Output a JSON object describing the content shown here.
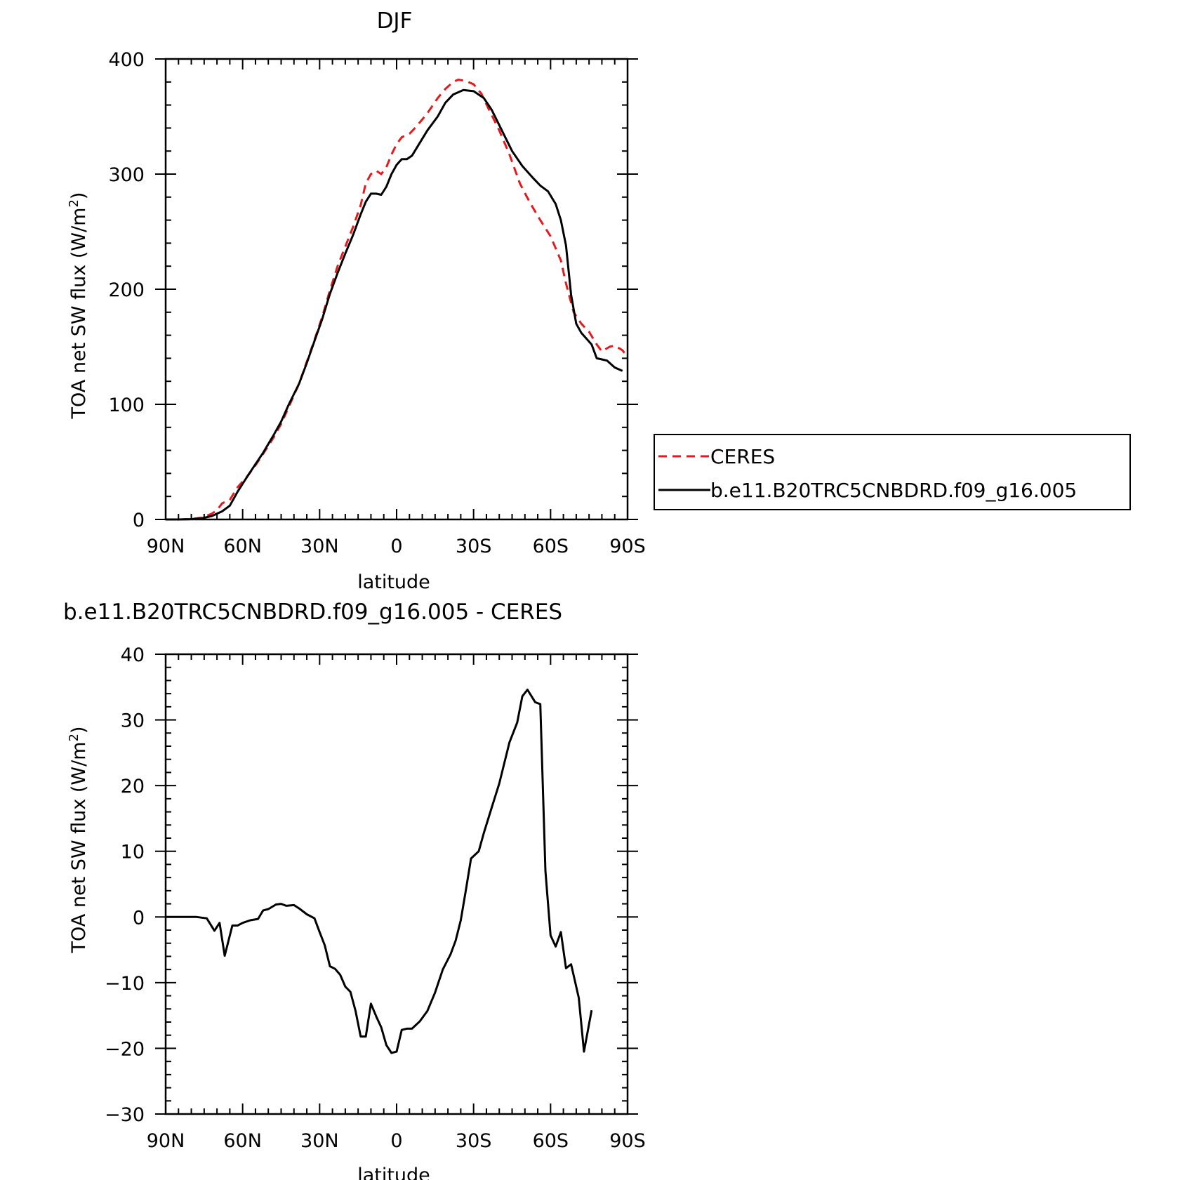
{
  "chart_data": [
    {
      "type": "line",
      "title": "DJF",
      "xlabel": "latitude",
      "ylabel": "TOA net SW flux (W/m",
      "ylabel_sup": "2",
      "ylabel_close": ")",
      "xlim": [
        -90,
        90
      ],
      "ylim": [
        0,
        400
      ],
      "x_ticks": [
        -90,
        -60,
        -30,
        0,
        30,
        60,
        90
      ],
      "x_tick_labels": [
        "90N",
        "60N",
        "30N",
        "0",
        "30S",
        "60S",
        "90S"
      ],
      "y_ticks": [
        0,
        100,
        200,
        300,
        400
      ],
      "y_tick_labels": [
        "0",
        "100",
        "200",
        "300",
        "400"
      ],
      "legend_position": "right",
      "series": [
        {
          "name": "CERES",
          "color": "#e41a1c",
          "style": "dashed",
          "points": [
            [
              -90,
              0
            ],
            [
              -85,
              0
            ],
            [
              -80,
              0.3
            ],
            [
              -76,
              1.5
            ],
            [
              -72,
              5
            ],
            [
              -70,
              8
            ],
            [
              -68,
              14
            ],
            [
              -65,
              17
            ],
            [
              -62,
              28
            ],
            [
              -58,
              38
            ],
            [
              -55,
              47
            ],
            [
              -52,
              57
            ],
            [
              -48,
              71
            ],
            [
              -45,
              83
            ],
            [
              -42,
              98
            ],
            [
              -38,
              118
            ],
            [
              -35,
              137
            ],
            [
              -32,
              156
            ],
            [
              -29,
              176
            ],
            [
              -26,
              199
            ],
            [
              -23,
              220
            ],
            [
              -20,
              237
            ],
            [
              -17,
              254
            ],
            [
              -14,
              273
            ],
            [
              -12,
              292
            ],
            [
              -10,
              300
            ],
            [
              -8,
              303
            ],
            [
              -6,
              300
            ],
            [
              -4,
              306
            ],
            [
              -2,
              317
            ],
            [
              0,
              326
            ],
            [
              2,
              332
            ],
            [
              5,
              335
            ],
            [
              8,
              342
            ],
            [
              12,
              353
            ],
            [
              16,
              366
            ],
            [
              19,
              374
            ],
            [
              22,
              380
            ],
            [
              24,
              382
            ],
            [
              27,
              381
            ],
            [
              30,
              378
            ],
            [
              33,
              370
            ],
            [
              36,
              356
            ],
            [
              40,
              338
            ],
            [
              44,
              317
            ],
            [
              48,
              292
            ],
            [
              52,
              275
            ],
            [
              56,
              260
            ],
            [
              60,
              246
            ],
            [
              64,
              225
            ],
            [
              66,
              205
            ],
            [
              69,
              180
            ],
            [
              72,
              170
            ],
            [
              75,
              163
            ],
            [
              78,
              152
            ],
            [
              80,
              146
            ],
            [
              83,
              150
            ],
            [
              85,
              151
            ],
            [
              88,
              147
            ],
            [
              90,
              141
            ]
          ]
        },
        {
          "name": "b.e11.B20TRC5CNBDRD.f09_g16.005",
          "color": "#000000",
          "style": "solid",
          "points": [
            [
              -90,
              0
            ],
            [
              -85,
              0
            ],
            [
              -80,
              0.3
            ],
            [
              -76,
              1
            ],
            [
              -72,
              3
            ],
            [
              -70,
              5
            ],
            [
              -68,
              7
            ],
            [
              -65,
              12
            ],
            [
              -62,
              24
            ],
            [
              -58,
              38
            ],
            [
              -55,
              48
            ],
            [
              -52,
              58
            ],
            [
              -48,
              73
            ],
            [
              -45,
              85
            ],
            [
              -42,
              100
            ],
            [
              -38,
              118
            ],
            [
              -35,
              136
            ],
            [
              -32,
              155
            ],
            [
              -29,
              174
            ],
            [
              -26,
              196
            ],
            [
              -23,
              214
            ],
            [
              -20,
              231
            ],
            [
              -17,
              247
            ],
            [
              -14,
              265
            ],
            [
              -12,
              276
            ],
            [
              -10,
              283
            ],
            [
              -8,
              283
            ],
            [
              -6,
              282
            ],
            [
              -4,
              289
            ],
            [
              -2,
              300
            ],
            [
              0,
              308
            ],
            [
              2,
              313
            ],
            [
              4,
              313
            ],
            [
              6,
              316
            ],
            [
              9,
              327
            ],
            [
              12,
              338
            ],
            [
              16,
              350
            ],
            [
              19,
              362
            ],
            [
              22,
              369
            ],
            [
              26,
              373
            ],
            [
              30,
              372
            ],
            [
              34,
              366
            ],
            [
              37,
              356
            ],
            [
              41,
              338
            ],
            [
              45,
              320
            ],
            [
              49,
              307
            ],
            [
              53,
              297
            ],
            [
              56,
              290
            ],
            [
              59,
              285
            ],
            [
              62,
              274
            ],
            [
              64,
              260
            ],
            [
              66,
              238
            ],
            [
              68,
              195
            ],
            [
              70,
              170
            ],
            [
              72,
              162
            ],
            [
              74,
              157
            ],
            [
              76,
              152
            ],
            [
              78,
              140
            ],
            [
              80,
              139
            ],
            [
              82,
              138
            ],
            [
              85,
              132
            ],
            [
              88,
              129
            ]
          ]
        }
      ]
    },
    {
      "type": "line",
      "title": "b.e11.B20TRC5CNBDRD.f09_g16.005 - CERES",
      "xlabel": "latitude",
      "ylabel": "TOA net SW flux (W/m",
      "ylabel_sup": "2",
      "ylabel_close": ")",
      "xlim": [
        -90,
        90
      ],
      "ylim": [
        -30,
        40
      ],
      "x_ticks": [
        -90,
        -60,
        -30,
        0,
        30,
        60,
        90
      ],
      "x_tick_labels": [
        "90N",
        "60N",
        "30N",
        "0",
        "30S",
        "60S",
        "90S"
      ],
      "y_ticks": [
        -30,
        -20,
        -10,
        0,
        10,
        20,
        30,
        40
      ],
      "y_tick_labels": [
        "−30",
        "−20",
        "−10",
        "0",
        "10",
        "20",
        "30",
        "40"
      ],
      "series": [
        {
          "color": "#000000",
          "style": "solid",
          "points": [
            [
              -90,
              0
            ],
            [
              -86,
              0
            ],
            [
              -82,
              0
            ],
            [
              -78,
              0
            ],
            [
              -74,
              -0.2
            ],
            [
              -71,
              -2.1
            ],
            [
              -69,
              -0.9
            ],
            [
              -67,
              -5.9
            ],
            [
              -64,
              -1.3
            ],
            [
              -62,
              -1.3
            ],
            [
              -60,
              -0.9
            ],
            [
              -57,
              -0.5
            ],
            [
              -54,
              -0.3
            ],
            [
              -52,
              1.0
            ],
            [
              -50,
              1.2
            ],
            [
              -47,
              1.9
            ],
            [
              -45,
              2.0
            ],
            [
              -43,
              1.7
            ],
            [
              -40,
              1.8
            ],
            [
              -38,
              1.3
            ],
            [
              -35,
              0.4
            ],
            [
              -32,
              -0.2
            ],
            [
              -30,
              -2.3
            ],
            [
              -28,
              -4.3
            ],
            [
              -26,
              -7.5
            ],
            [
              -24,
              -7.9
            ],
            [
              -22,
              -8.8
            ],
            [
              -20,
              -10.6
            ],
            [
              -18,
              -11.4
            ],
            [
              -16,
              -14.3
            ],
            [
              -14,
              -18.2
            ],
            [
              -12,
              -18.2
            ],
            [
              -10,
              -13.2
            ],
            [
              -8,
              -15.1
            ],
            [
              -6,
              -16.8
            ],
            [
              -4,
              -19.5
            ],
            [
              -2,
              -20.7
            ],
            [
              0,
              -20.5
            ],
            [
              2,
              -17.2
            ],
            [
              4,
              -17.0
            ],
            [
              6,
              -17.0
            ],
            [
              9,
              -15.9
            ],
            [
              12,
              -14.3
            ],
            [
              15,
              -11.5
            ],
            [
              18,
              -8.0
            ],
            [
              21,
              -5.7
            ],
            [
              23,
              -3.6
            ],
            [
              25,
              -0.5
            ],
            [
              27,
              4.1
            ],
            [
              29,
              8.9
            ],
            [
              32,
              10.0
            ],
            [
              34,
              12.8
            ],
            [
              37,
              16.6
            ],
            [
              40,
              20.3
            ],
            [
              44,
              26.6
            ],
            [
              47,
              29.6
            ],
            [
              49,
              33.6
            ],
            [
              51,
              34.6
            ],
            [
              54,
              32.7
            ],
            [
              56,
              32.4
            ],
            [
              58,
              7.0
            ],
            [
              60,
              -2.8
            ],
            [
              62,
              -4.5
            ],
            [
              64,
              -2.3
            ],
            [
              66,
              -7.8
            ],
            [
              68,
              -7.2
            ],
            [
              71,
              -12.3
            ],
            [
              73,
              -20.5
            ],
            [
              76,
              -14.2
            ]
          ]
        }
      ]
    },
    {
      "type": "legend",
      "entries": [
        "CERES",
        "b.e11.B20TRC5CNBDRD.f09_g16.005"
      ]
    }
  ]
}
